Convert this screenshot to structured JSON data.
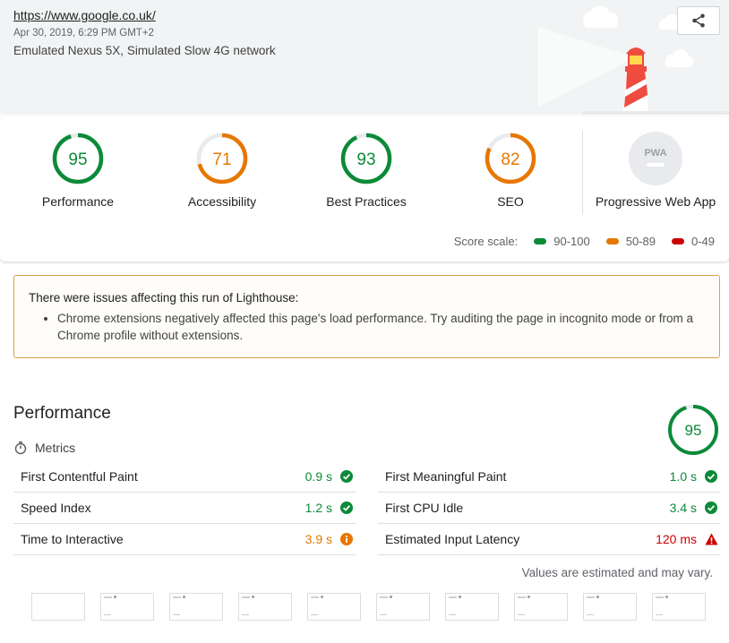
{
  "header": {
    "url": "https://www.google.co.uk/",
    "date": "Apr 30, 2019, 6:29 PM GMT+2",
    "environment": "Emulated Nexus 5X, Simulated Slow 4G network",
    "share_icon": "share-icon"
  },
  "gauges": [
    {
      "score": "95",
      "label": "Performance",
      "fraction": 0.95,
      "color": "#0b8a38"
    },
    {
      "score": "71",
      "label": "Accessibility",
      "fraction": 0.71,
      "color": "#e67700"
    },
    {
      "score": "93",
      "label": "Best Practices",
      "fraction": 0.93,
      "color": "#0b8a38"
    },
    {
      "score": "82",
      "label": "SEO",
      "fraction": 0.82,
      "color": "#e67700"
    }
  ],
  "pwa": {
    "label": "Progressive Web App",
    "badge": "PWA"
  },
  "scale": {
    "label": "Score scale:",
    "ranges": [
      {
        "text": "90-100",
        "color": "#0b8a38"
      },
      {
        "text": "50-89",
        "color": "#e67700"
      },
      {
        "text": "0-49",
        "color": "#cc0000"
      }
    ]
  },
  "warning": {
    "title": "There were issues affecting this run of Lighthouse:",
    "items": [
      "Chrome extensions negatively affected this page's load performance. Try auditing the page in incognito mode or from a Chrome profile without extensions."
    ]
  },
  "performance": {
    "title": "Performance",
    "score": "95",
    "metrics_label": "Metrics",
    "metrics": [
      {
        "name": "First Contentful Paint",
        "value": "0.9 s",
        "status": "pass"
      },
      {
        "name": "First Meaningful Paint",
        "value": "1.0 s",
        "status": "pass"
      },
      {
        "name": "Speed Index",
        "value": "1.2 s",
        "status": "pass"
      },
      {
        "name": "First CPU Idle",
        "value": "3.4 s",
        "status": "pass"
      },
      {
        "name": "Time to Interactive",
        "value": "3.9 s",
        "status": "average"
      },
      {
        "name": "Estimated Input Latency",
        "value": "120 ms",
        "status": "fail"
      }
    ],
    "note": "Values are estimated and may vary."
  },
  "colors": {
    "pass": "#0b8a38",
    "average": "#e67700",
    "fail": "#cc0000"
  }
}
